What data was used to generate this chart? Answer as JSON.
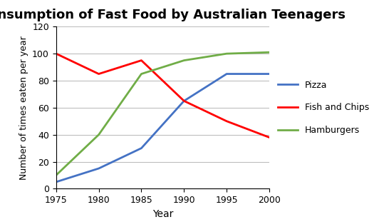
{
  "title": "Consumption of Fast Food by Australian Teenagers",
  "xlabel": "Year",
  "ylabel": "Number of times eaten per year",
  "years": [
    1975,
    1980,
    1985,
    1990,
    1995,
    2000
  ],
  "pizza": [
    5,
    15,
    30,
    65,
    85,
    85
  ],
  "fish_and_chips": [
    100,
    85,
    95,
    65,
    50,
    38
  ],
  "hamburgers": [
    10,
    40,
    85,
    95,
    100,
    101
  ],
  "pizza_color": "#4472C4",
  "fish_color": "#FF0000",
  "hamburgers_color": "#70AD47",
  "ylim": [
    0,
    120
  ],
  "yticks": [
    0,
    20,
    40,
    60,
    80,
    100,
    120
  ],
  "xticks": [
    1975,
    1980,
    1985,
    1990,
    1995,
    2000
  ],
  "legend_labels": [
    "Pizza",
    "Fish and Chips",
    "Hamburgers"
  ],
  "title_fontsize": 13,
  "label_fontsize": 10,
  "tick_fontsize": 9,
  "line_width": 2.0,
  "bg_color": "#FFFFFF",
  "grid_color": "#BEBEBE"
}
